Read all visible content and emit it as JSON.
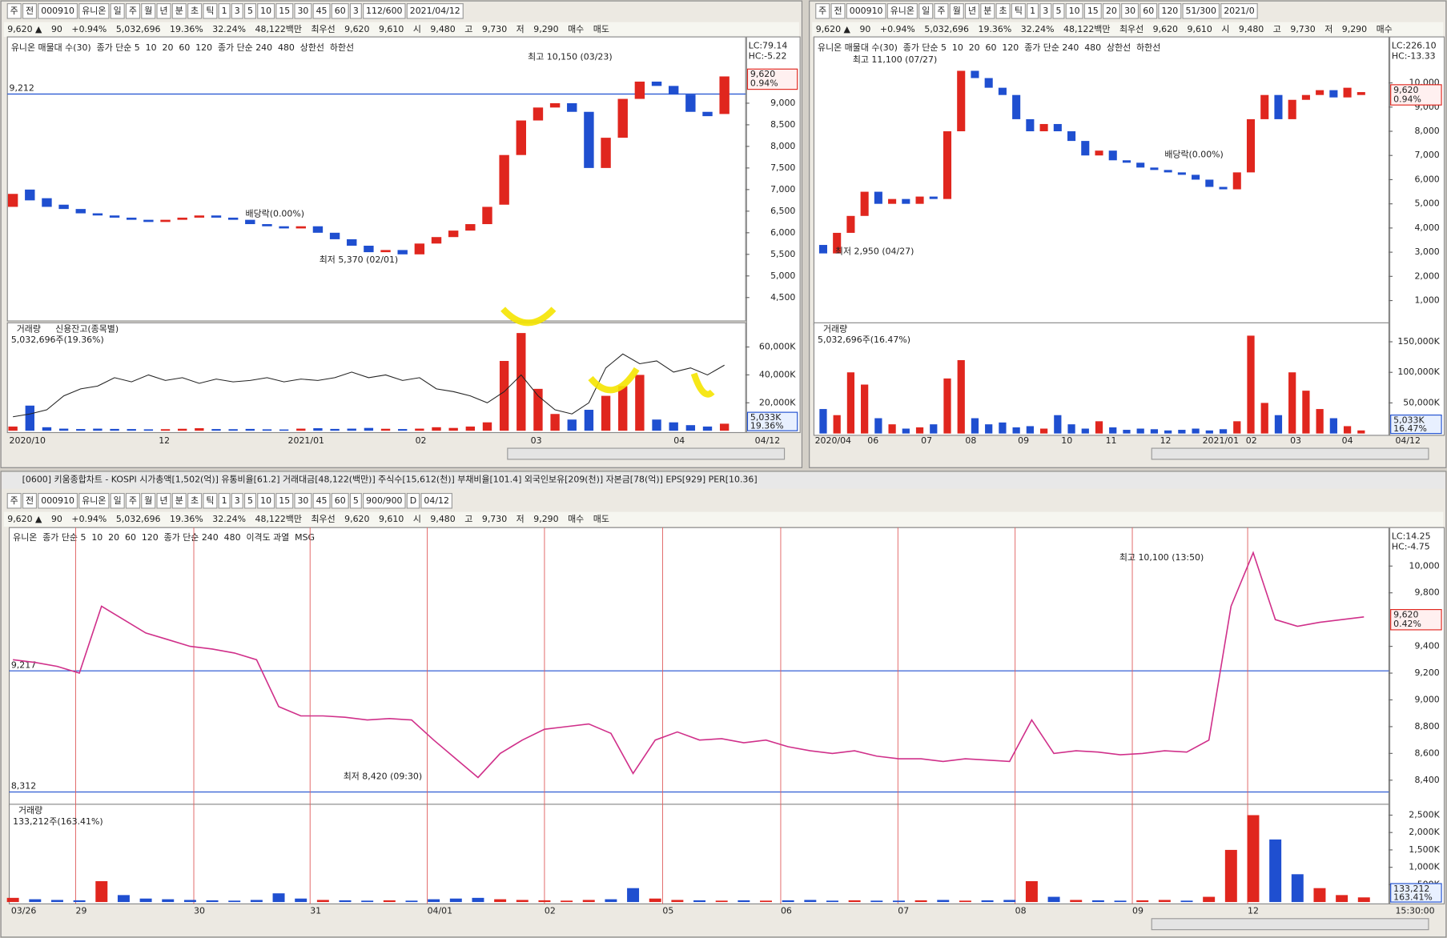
{
  "panels": [
    {
      "toolbar": [
        "주",
        "전",
        "000910",
        "유니온",
        "일",
        "주",
        "월",
        "년",
        "분",
        "초",
        "틱",
        "1",
        "3",
        "5",
        "10",
        "15",
        "30",
        "45",
        "60",
        "3",
        "112/600",
        "2021/04/12"
      ],
      "quote": [
        "9,620 ▲",
        "90",
        "+0.94%",
        "5,032,696",
        "19.36%",
        "32.24%",
        "48,122백만",
        "최우선",
        "9,620",
        "9,610",
        "시",
        "9,480",
        "고",
        "9,730",
        "저",
        "9,290",
        "매수",
        "매도"
      ],
      "legend": [
        "유니온 매물대 수(30)",
        "종가 단순 5",
        "10",
        "20",
        "60",
        "120",
        "종가 단순 240",
        "480",
        "상한선",
        "하한선"
      ],
      "scale_info": [
        "LC:79.14",
        "HC:-5.22"
      ],
      "price": {
        "type": "candlestick",
        "ylim": [
          4000,
          10450
        ],
        "yticks": [
          {
            "value": 4500,
            "label": "4,500"
          },
          {
            "value": 5000,
            "label": "5,000"
          },
          {
            "value": 5500,
            "label": "5,500"
          },
          {
            "value": 6000,
            "label": "6,000"
          },
          {
            "value": 6500,
            "label": "6,500"
          },
          {
            "value": 7000,
            "label": "7,000"
          },
          {
            "value": 7500,
            "label": "7,500"
          },
          {
            "value": 8000,
            "label": "8,000"
          },
          {
            "value": 8500,
            "label": "8,500"
          },
          {
            "value": 9000,
            "label": "9,000"
          }
        ],
        "open": [
          6600,
          7000,
          6800,
          6650,
          6550,
          6450,
          6400,
          6350,
          6300,
          6250,
          6300,
          6350,
          6400,
          6350,
          6300,
          6200,
          6150,
          6100,
          6150,
          6000,
          5850,
          5700,
          5550,
          5600,
          5500,
          5750,
          5900,
          6050,
          6200,
          6650,
          7800,
          8600,
          8900,
          9000,
          8800,
          7500,
          8200,
          9100,
          9500,
          9400,
          9200,
          8800,
          8750
        ],
        "close": [
          6900,
          6750,
          6600,
          6550,
          6450,
          6400,
          6350,
          6300,
          6250,
          6300,
          6350,
          6400,
          6350,
          6300,
          6200,
          6150,
          6100,
          6150,
          6000,
          5850,
          5700,
          5550,
          5600,
          5500,
          5750,
          5900,
          6050,
          6200,
          6600,
          7800,
          8600,
          8900,
          9000,
          8800,
          7500,
          8200,
          9100,
          9500,
          9400,
          9200,
          8800,
          8700,
          9620
        ],
        "current": [
          "9,620",
          "0.94%"
        ],
        "hlines": [
          {
            "value": 9212,
            "label": "9,212"
          }
        ],
        "annotations": [
          "최고 10,150 (03/23)",
          "최저 5,370 (02/01)",
          "배당락(0.00%)"
        ]
      },
      "volume": {
        "legend": [
          "거래량",
          "신용잔고(종목별)"
        ],
        "info": "5,032,696주(19.36%)",
        "ylim": [
          0,
          76000000
        ],
        "yticks": [
          {
            "value": 20000000,
            "label": "20,000K"
          },
          {
            "value": 40000000,
            "label": "40,000K"
          },
          {
            "value": 60000000,
            "label": "60,000K"
          }
        ],
        "values": [
          3000000,
          18000000,
          2500000,
          1500000,
          1200000,
          1500000,
          1300000,
          1200000,
          1000000,
          1100000,
          1400000,
          1800000,
          1200000,
          1100000,
          1300000,
          1000000,
          900000,
          1500000,
          1800000,
          1300000,
          1500000,
          2000000,
          1400000,
          1200000,
          1500000,
          2500000,
          2000000,
          3000000,
          6000000,
          50000000,
          70000000,
          30000000,
          12000000,
          8000000,
          15000000,
          25000000,
          32000000,
          40000000,
          8000000,
          6000000,
          4000000,
          3000000,
          5032696
        ],
        "credit": [
          10000000,
          12000000,
          15000000,
          25000000,
          30000000,
          32000000,
          38000000,
          35000000,
          40000000,
          36000000,
          38000000,
          34000000,
          37000000,
          35000000,
          36000000,
          38000000,
          35000000,
          37000000,
          36000000,
          38000000,
          42000000,
          38000000,
          40000000,
          36000000,
          38000000,
          30000000,
          28000000,
          25000000,
          20000000,
          28000000,
          40000000,
          25000000,
          15000000,
          12000000,
          20000000,
          45000000,
          55000000,
          48000000,
          50000000,
          42000000,
          45000000,
          40000000,
          47000000
        ],
        "current": [
          "5,033K",
          "19.36%"
        ]
      },
      "xlabels": [
        "2020/10",
        "12",
        "2021/01",
        "02",
        "03",
        "04",
        "04/12"
      ]
    },
    {
      "toolbar": [
        "주",
        "전",
        "000910",
        "유니온",
        "일",
        "주",
        "월",
        "년",
        "분",
        "초",
        "틱",
        "1",
        "3",
        "5",
        "10",
        "15",
        "20",
        "30",
        "60",
        "120",
        "51/300",
        "2021/0"
      ],
      "quote": [
        "9,620 ▲",
        "90",
        "+0.94%",
        "5,032,696",
        "19.36%",
        "32.24%",
        "48,122백만",
        "최우선",
        "9,620",
        "9,610",
        "시",
        "9,480",
        "고",
        "9,730",
        "저",
        "9,290",
        "매수"
      ],
      "legend": [
        "유니온 매물대 수(30)",
        "종가 단순 5",
        "10",
        "20",
        "60",
        "120",
        "종가 단순 240",
        "480",
        "상한선",
        "하한선"
      ],
      "scale_info": [
        "LC:226.10",
        "HC:-13.33"
      ],
      "price": {
        "type": "candlestick",
        "ylim": [
          80,
          11750
        ],
        "yticks": [
          {
            "value": 1000,
            "label": "1,000"
          },
          {
            "value": 2000,
            "label": "2,000"
          },
          {
            "value": 3000,
            "label": "3,000"
          },
          {
            "value": 4000,
            "label": "4,000"
          },
          {
            "value": 5000,
            "label": "5,000"
          },
          {
            "value": 6000,
            "label": "6,000"
          },
          {
            "value": 7000,
            "label": "7,000"
          },
          {
            "value": 8000,
            "label": "8,000"
          },
          {
            "value": 9000,
            "label": "9,000"
          },
          {
            "value": 10000,
            "label": "10,000"
          }
        ],
        "open": [
          3300,
          2950,
          3800,
          4500,
          5500,
          5000,
          5200,
          5000,
          5300,
          5200,
          8000,
          10500,
          10200,
          9800,
          9500,
          8500,
          8000,
          8300,
          8000,
          7600,
          7000,
          7200,
          6800,
          6700,
          6500,
          6400,
          6300,
          6200,
          6000,
          5700,
          5600,
          6300,
          8500,
          9500,
          8500,
          9300,
          9500,
          9700,
          9400,
          9500
        ],
        "close": [
          2950,
          3800,
          4500,
          5500,
          5000,
          5200,
          5000,
          5300,
          5200,
          8000,
          10500,
          10200,
          9800,
          9500,
          8500,
          8000,
          8300,
          8000,
          7600,
          7000,
          7200,
          6800,
          6700,
          6500,
          6400,
          6300,
          6200,
          6000,
          5700,
          5600,
          6300,
          8500,
          9500,
          8500,
          9300,
          9500,
          9700,
          9400,
          9800,
          9620
        ],
        "current": [
          "9,620",
          "0.94%"
        ],
        "hlines": [],
        "annotations": [
          "최고 11,100 (07/27)",
          "최저 2,950 (04/27)",
          "배당락(0.00%)"
        ]
      },
      "volume": {
        "legend": [
          "거래량"
        ],
        "info": "5,032,696주(16.47%)",
        "ylim": [
          0,
          178000000
        ],
        "yticks": [
          {
            "value": 50000000,
            "label": "50,000K"
          },
          {
            "value": 100000000,
            "label": "100,000K"
          },
          {
            "value": 150000000,
            "label": "150,000K"
          }
        ],
        "values": [
          40000000,
          30000000,
          100000000,
          80000000,
          25000000,
          15000000,
          8000000,
          10000000,
          15000000,
          90000000,
          120000000,
          25000000,
          15000000,
          18000000,
          10000000,
          12000000,
          8000000,
          30000000,
          15000000,
          8000000,
          20000000,
          10000000,
          6000000,
          8000000,
          7000000,
          5000000,
          6000000,
          8000000,
          5000000,
          7000000,
          20000000,
          160000000,
          50000000,
          30000000,
          100000000,
          70000000,
          40000000,
          25000000,
          12000000,
          5032696
        ],
        "current": [
          "5,033K",
          "16.47%"
        ]
      },
      "xlabels": [
        "2020/04",
        "06",
        "07",
        "08",
        "09",
        "10",
        "11",
        "12",
        "2021/01",
        "02",
        "03",
        "04",
        "04/12"
      ]
    },
    {
      "title": "[0600] 키움종합차트 - KOSPI 시가총액[1,502(억)] 유통비율[61.2] 거래대금[48,122(백만)] 주식수[15,612(천)] 부채비율[101.4] 외국인보유[209(천)] 자본금[78(억)] EPS[929] PER[10.36]",
      "toolbar": [
        "주",
        "전",
        "000910",
        "유니온",
        "일",
        "주",
        "월",
        "년",
        "분",
        "초",
        "틱",
        "1",
        "3",
        "5",
        "10",
        "15",
        "30",
        "45",
        "60",
        "5",
        "900/900",
        "D",
        "04/12"
      ],
      "quote": [
        "9,620 ▲",
        "90",
        "+0.94%",
        "5,032,696",
        "19.36%",
        "32.24%",
        "48,122백만",
        "최우선",
        "9,620",
        "9,610",
        "시",
        "9,480",
        "고",
        "9,730",
        "저",
        "9,290",
        "매수",
        "매도"
      ],
      "legend": [
        "유니온",
        "종가 단순 5",
        "10",
        "20",
        "60",
        "120",
        "종가 단순 240",
        "480",
        "이격도 과열",
        "MSG"
      ],
      "scale_info": [
        "LC:14.25",
        "HC:-4.75"
      ],
      "price": {
        "type": "line",
        "ylim": [
          8220,
          10260
        ],
        "yticks": [
          {
            "value": 8400,
            "label": "8,400"
          },
          {
            "value": 8600,
            "label": "8,600"
          },
          {
            "value": 8800,
            "label": "8,800"
          },
          {
            "value": 9000,
            "label": "9,000"
          },
          {
            "value": 9200,
            "label": "9,200"
          },
          {
            "value": 9400,
            "label": "9,400"
          },
          {
            "value": 9800,
            "label": "9,800"
          },
          {
            "value": 10000,
            "label": "10,000"
          }
        ],
        "close": [
          9300,
          9280,
          9250,
          9200,
          9700,
          9600,
          9500,
          9450,
          9400,
          9380,
          9350,
          9300,
          8950,
          8880,
          8880,
          8870,
          8850,
          8860,
          8850,
          8700,
          8560,
          8420,
          8600,
          8700,
          8780,
          8800,
          8820,
          8750,
          8450,
          8700,
          8760,
          8700,
          8710,
          8680,
          8700,
          8650,
          8620,
          8600,
          8620,
          8580,
          8560,
          8560,
          8540,
          8560,
          8550,
          8540,
          8850,
          8600,
          8620,
          8610,
          8590,
          8600,
          8620,
          8610,
          8700,
          9700,
          10100,
          9600,
          9550,
          9580,
          9600,
          9620
        ],
        "current": [
          "9,620",
          "0.42%"
        ],
        "hlines": [
          {
            "value": 9217,
            "label": "9,217"
          },
          {
            "value": 8312,
            "label": "8,312"
          }
        ],
        "annotations": [
          "최고 10,100 (13:50)",
          "최저 8,420 (09:30)"
        ]
      },
      "volume": {
        "legend": [
          "거래량"
        ],
        "info": "133,212주(163.41%)",
        "ylim": [
          0,
          2760000
        ],
        "yticks": [
          {
            "value": 500000,
            "label": "500K"
          },
          {
            "value": 1000000,
            "label": "1,000K"
          },
          {
            "value": 1500000,
            "label": "1,500K"
          },
          {
            "value": 2000000,
            "label": "2,000K"
          },
          {
            "value": 2500000,
            "label": "2,500K"
          }
        ],
        "values": [
          120000,
          80000,
          60000,
          50000,
          600000,
          200000,
          100000,
          80000,
          60000,
          50000,
          40000,
          60000,
          250000,
          100000,
          60000,
          50000,
          40000,
          50000,
          40000,
          80000,
          100000,
          120000,
          80000,
          60000,
          50000,
          40000,
          60000,
          80000,
          400000,
          100000,
          60000,
          50000,
          40000,
          50000,
          40000,
          50000,
          60000,
          40000,
          50000,
          40000,
          40000,
          50000,
          60000,
          40000,
          50000,
          60000,
          600000,
          150000,
          60000,
          50000,
          40000,
          50000,
          60000,
          40000,
          150000,
          1500000,
          2500000,
          1800000,
          800000,
          400000,
          200000,
          133212
        ],
        "current": [
          "133,212",
          "163.41%"
        ]
      },
      "xlabels": [
        "03/26",
        "29",
        "30",
        "31",
        "04/01",
        "02",
        "05",
        "06",
        "07",
        "08",
        "09",
        "12",
        "15:30:00"
      ]
    }
  ]
}
